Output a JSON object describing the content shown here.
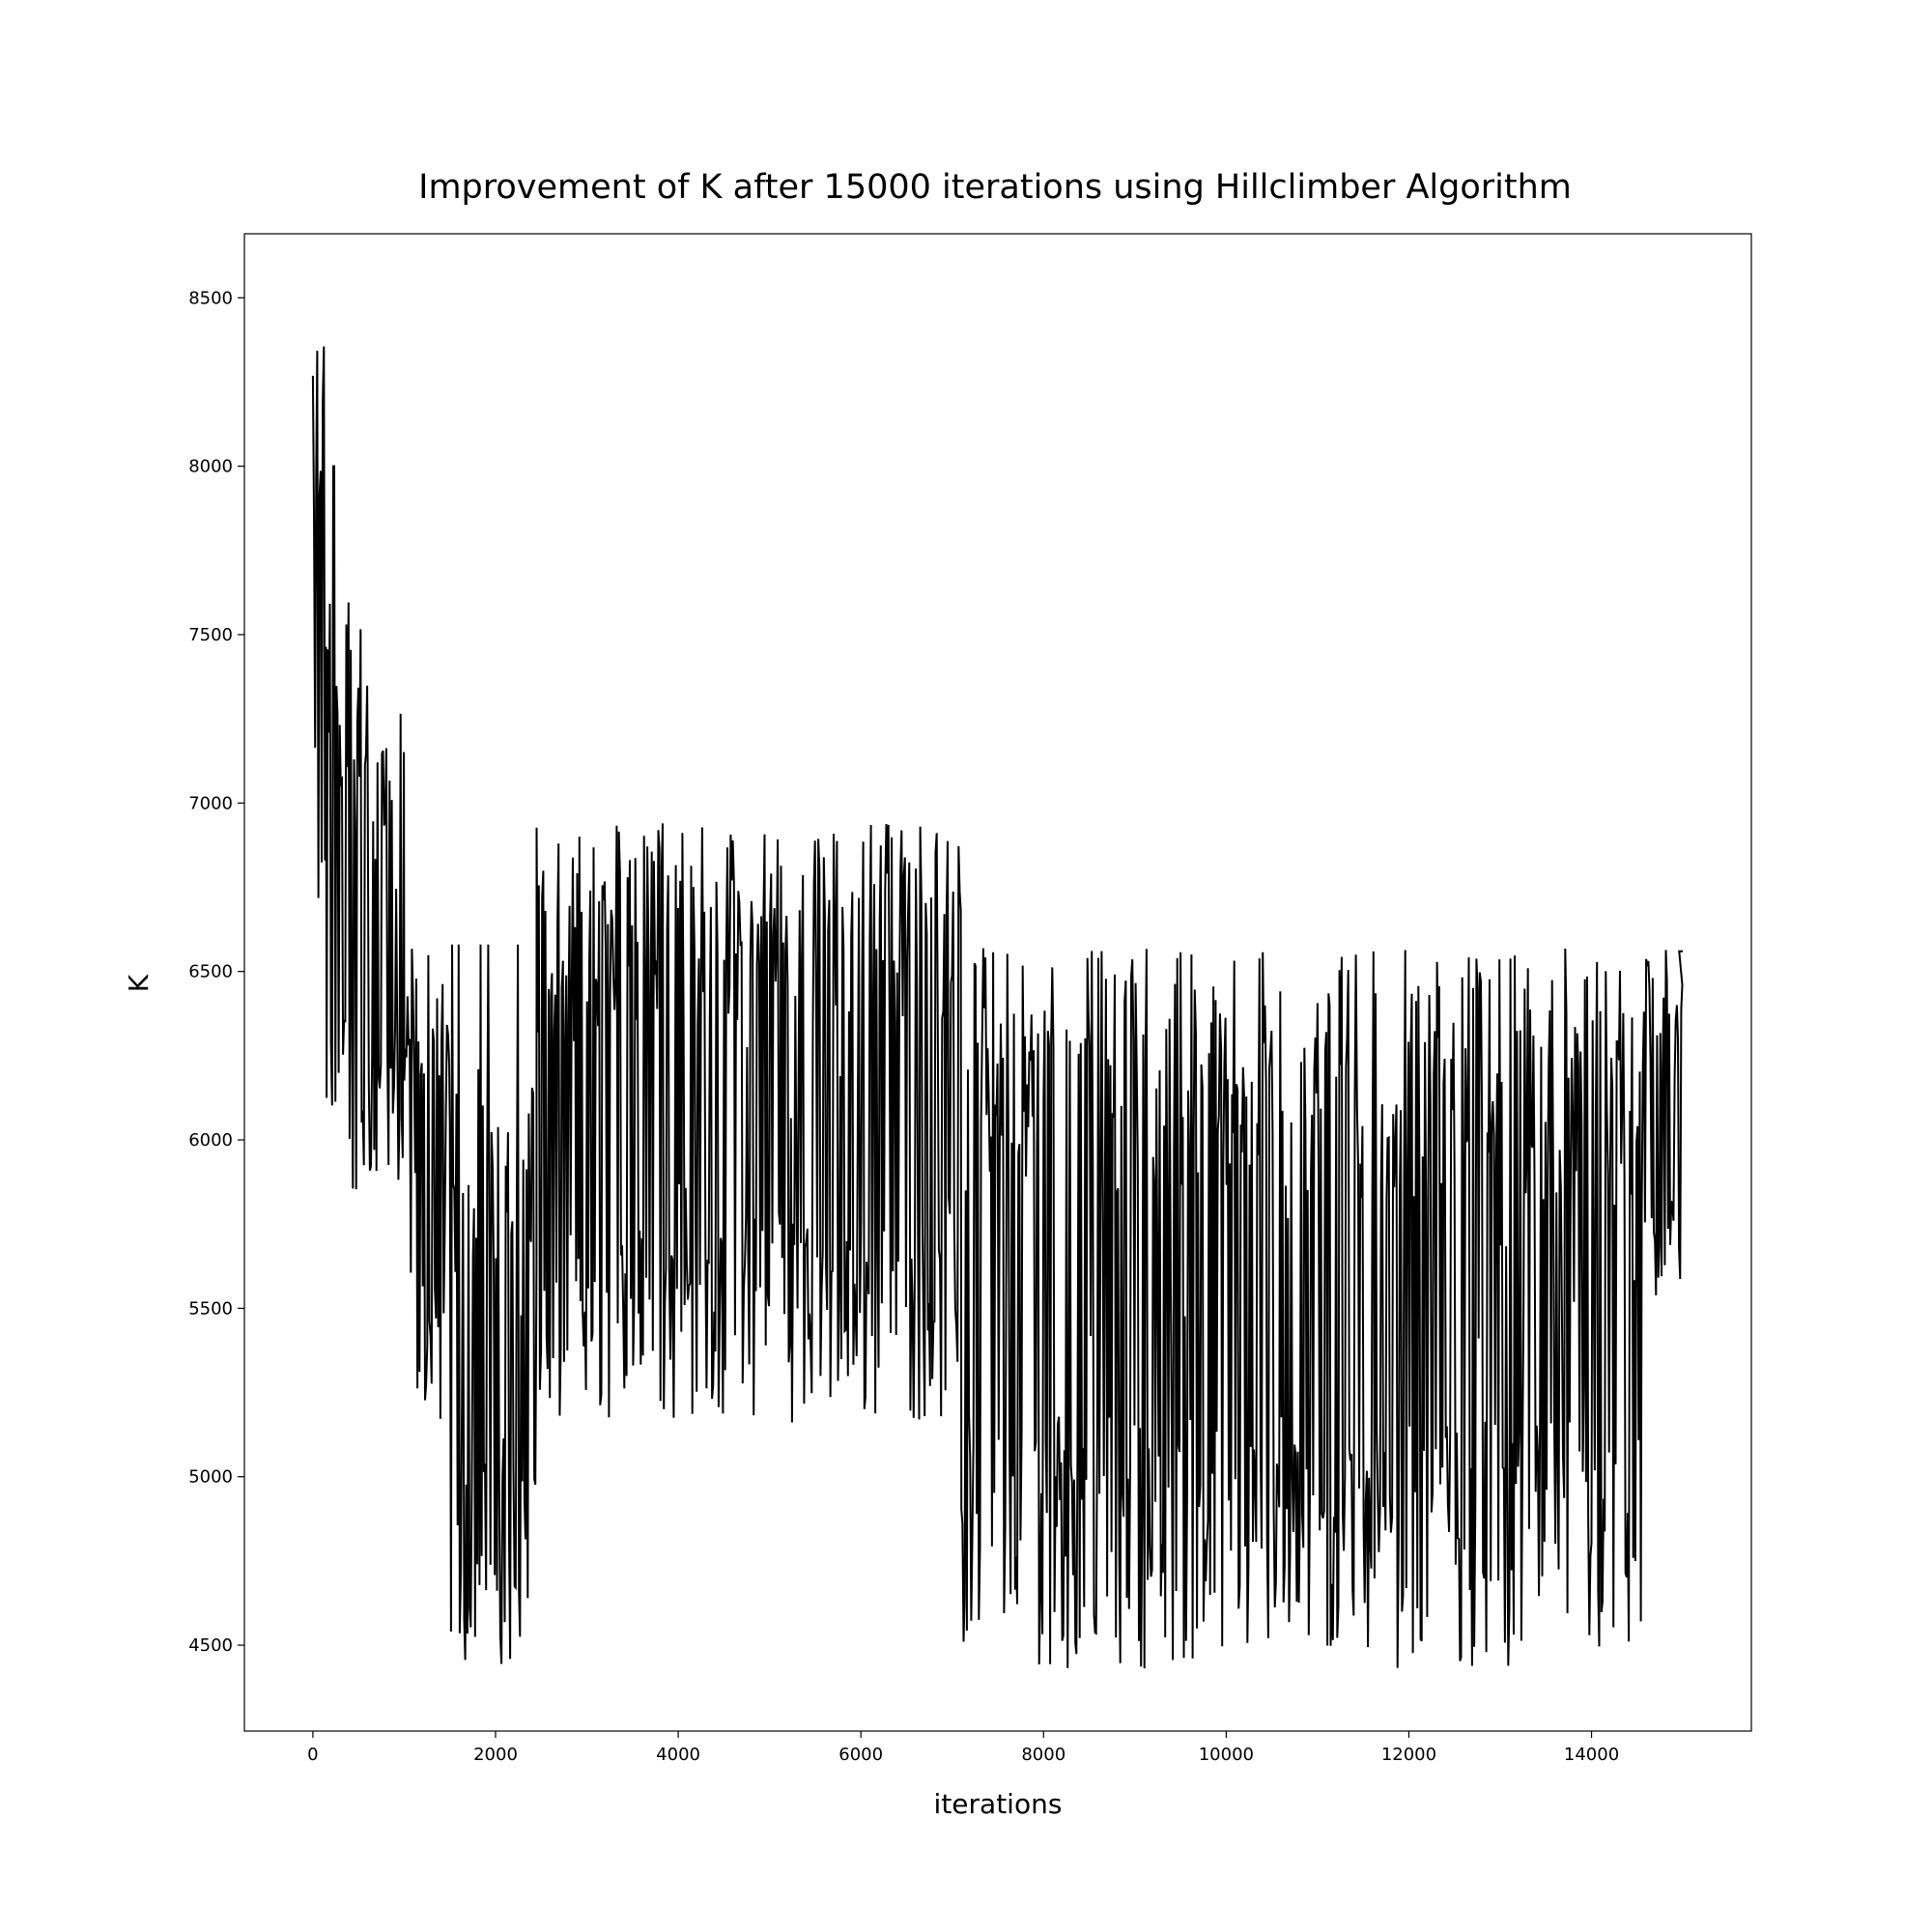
{
  "chart_data": {
    "type": "line",
    "title": "Improvement of K after 15000 iterations using Hillclimber Algorithm",
    "xlabel": "iterations",
    "ylabel": "K",
    "xlim": [
      -750,
      15750
    ],
    "ylim": [
      4245,
      8690
    ],
    "xticks": [
      0,
      2000,
      4000,
      6000,
      8000,
      10000,
      12000,
      14000
    ],
    "yticks": [
      4500,
      5000,
      5500,
      6000,
      6500,
      7000,
      7500,
      8000,
      8500
    ],
    "grid": false,
    "legend": "none",
    "line_color": "#000000",
    "series": [
      {
        "description_segments": [
          {
            "x_start": 0,
            "x_end": 150,
            "low": 6580,
            "high": 8470,
            "spikes_high": [
              8470,
              8380,
              8050,
              8000
            ]
          },
          {
            "x_start": 150,
            "x_end": 600,
            "low": 5850,
            "high": 7650,
            "spikes_high": [
              8000,
              7640,
              7660
            ]
          },
          {
            "x_start": 600,
            "x_end": 1000,
            "low": 5860,
            "high": 7300
          },
          {
            "x_start": 1000,
            "x_end": 1500,
            "low": 5150,
            "high": 6580
          },
          {
            "x_start": 1500,
            "x_end": 2450,
            "low": 4440,
            "high": 6220,
            "spikes_high": [
              6580,
              6580
            ]
          },
          {
            "x_start": 2450,
            "x_end": 7100,
            "low": 5160,
            "high": 6940
          },
          {
            "x_start": 7100,
            "x_end": 14550,
            "low": 4430,
            "high": 6570
          },
          {
            "x_start": 14550,
            "x_end": 15000,
            "low": 5490,
            "high": 6570
          }
        ],
        "end_value": 6560
      }
    ]
  }
}
